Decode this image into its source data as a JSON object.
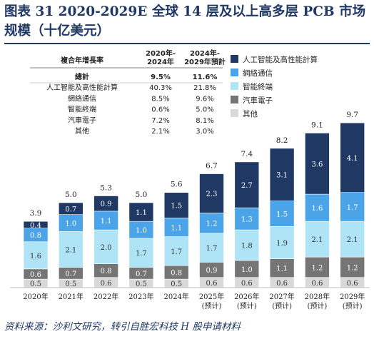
{
  "figure": {
    "title": "图表 31   2020-2029E 全球 14 层及以上高多层 PCB 市场规模（十亿美元）",
    "source": "资料来源：沙利文研究，转引自胜宏科技 H 股申请材料"
  },
  "chart_data": {
    "type": "bar",
    "stacked": true,
    "categories": [
      "2020年",
      "2021年",
      "2022年",
      "2023年",
      "2024年",
      "2025年\n(预计)",
      "2026年\n(预计)",
      "2027年\n(预计)",
      "2028年\n(预计)",
      "2029年\n(预计)"
    ],
    "series": [
      {
        "name": "其他",
        "color": "#d9d9d9",
        "values": [
          0.5,
          0.5,
          0.6,
          0.5,
          0.5,
          0.6,
          0.6,
          0.6,
          0.6,
          0.6
        ]
      },
      {
        "name": "汽車電子",
        "color": "#757575",
        "values": [
          0.6,
          0.7,
          0.8,
          0.7,
          0.8,
          0.9,
          1.0,
          1.1,
          1.2,
          1.2
        ]
      },
      {
        "name": "智能終端",
        "color": "#aee4f5",
        "values": [
          1.6,
          2.1,
          2.0,
          1.7,
          1.7,
          1.7,
          1.8,
          1.9,
          2.1,
          2.1
        ]
      },
      {
        "name": "網絡通信",
        "color": "#4ba3e8",
        "values": [
          0.8,
          1.0,
          1.1,
          1.0,
          1.1,
          1.2,
          1.3,
          1.5,
          1.6,
          1.7
        ]
      },
      {
        "name": "人工智能及高性能計算",
        "color": "#1f3864",
        "values": [
          0.4,
          0.7,
          0.9,
          1.1,
          1.5,
          2.3,
          2.7,
          3.1,
          3.6,
          4.1
        ]
      }
    ],
    "totals": [
      3.9,
      5.0,
      5.3,
      5.0,
      5.6,
      6.7,
      7.4,
      8.2,
      9.1,
      9.7
    ],
    "legend_position": "top-right",
    "grid": false,
    "cagr_table": {
      "header": [
        "複合年增長率",
        "2020年-\n2024年",
        "2024年-\n2029年預計"
      ],
      "rows": [
        [
          "總計",
          "9.5%",
          "11.6%"
        ],
        [
          "人工智能及高性能計算",
          "40.3%",
          "21.8%"
        ],
        [
          "網絡通信",
          "8.5%",
          "9.6%"
        ],
        [
          "智能終端",
          "0.6%",
          "5.0%"
        ],
        [
          "汽車電子",
          "7.2%",
          "8.1%"
        ],
        [
          "其他",
          "2.1%",
          "3.0%"
        ]
      ]
    }
  }
}
